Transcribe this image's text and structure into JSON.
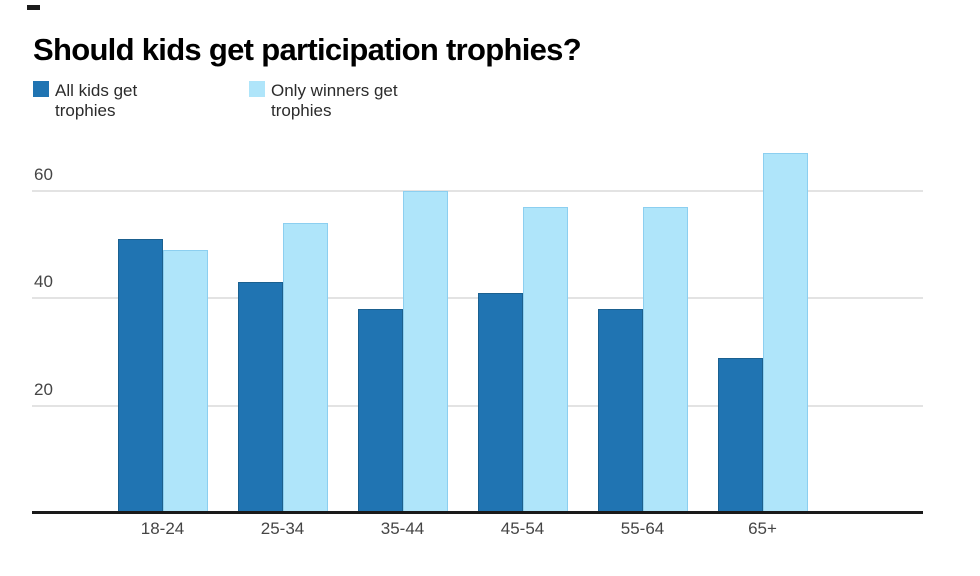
{
  "title": "Should kids get participation trophies?",
  "chart_data": {
    "type": "bar",
    "title": "Should kids get participation trophies?",
    "categories": [
      "18-24",
      "25-34",
      "35-44",
      "45-54",
      "55-64",
      "65+"
    ],
    "series": [
      {
        "name": "All kids get trophies",
        "color": "#2074b2",
        "border_color": "#1b608f",
        "values": [
          51,
          43,
          38,
          41,
          38,
          29
        ]
      },
      {
        "name": "Only winners get trophies",
        "color": "#afe5fa",
        "border_color": "#8ccff0",
        "values": [
          49,
          54,
          60,
          57,
          57,
          67
        ]
      }
    ],
    "y_ticks": [
      20,
      40,
      60
    ],
    "ylim": [
      0,
      69
    ],
    "xlabel": "",
    "ylabel": "",
    "grid": true,
    "legend_position": "top-left",
    "colors": {
      "axis_line": "#1a1a1a",
      "gridline": "#e3e3e3",
      "tick_label": "#454545",
      "title": "#000000"
    }
  }
}
